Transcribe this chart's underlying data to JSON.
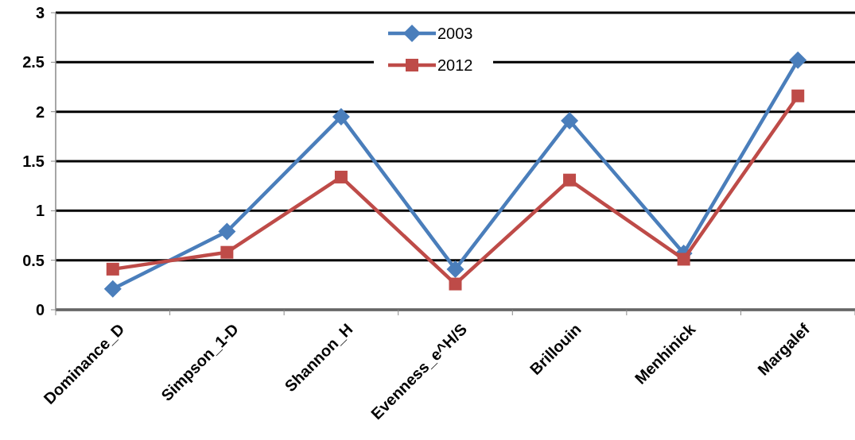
{
  "chart_data": {
    "type": "line",
    "categories": [
      "Dominance_D",
      "Simpson_1-D",
      "Shannon_H",
      "Evenness_e^H/S",
      "Brillouin",
      "Menhinick",
      "Margalef"
    ],
    "series": [
      {
        "name": "2003",
        "color": "#4a7ebb",
        "marker": "diamond",
        "values": [
          0.21,
          0.79,
          1.95,
          0.41,
          1.91,
          0.57,
          2.52
        ]
      },
      {
        "name": "2012",
        "color": "#be4b48",
        "marker": "square",
        "values": [
          0.41,
          0.58,
          1.34,
          0.26,
          1.31,
          0.51,
          2.16
        ]
      }
    ],
    "ylim": [
      0,
      3
    ],
    "yticks": [
      0,
      0.5,
      1,
      1.5,
      2,
      2.5,
      3
    ],
    "grid": "y",
    "legend": "top",
    "line_style": "solid"
  }
}
